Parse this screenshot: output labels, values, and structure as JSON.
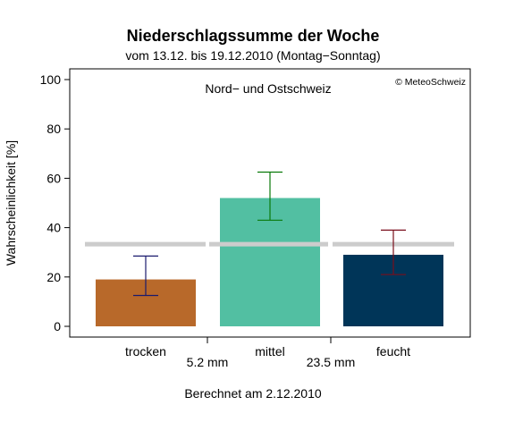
{
  "title": "Niederschlagssumme der Woche",
  "subtitle": "vom 13.12. bis 19.12.2010 (Montag−Sonntag)",
  "footer": "Berechnet am 2.12.2010",
  "region": "Nord− und Ostschweiz",
  "copyright": "© MeteoSchweiz",
  "chart_data": {
    "type": "bar",
    "ylabel": "Wahrscheinlichkeit [%]",
    "ylim": [
      0,
      100
    ],
    "yticks": [
      0,
      20,
      40,
      60,
      80,
      100
    ],
    "grid": false,
    "categories": [
      "trocken",
      "mittel",
      "feucht"
    ],
    "values": [
      19,
      52,
      29
    ],
    "error_low": [
      12.5,
      43,
      21
    ],
    "error_high": [
      28.5,
      62.5,
      39
    ],
    "climatology": 33.3,
    "thresholds": [
      "5.2 mm",
      "23.5 mm"
    ],
    "colors": {
      "bars": [
        "#b8692a",
        "#52bfa2",
        "#003558"
      ],
      "errors": [
        "#1a1a6e",
        "#0a7a0a",
        "#7a0f1c"
      ],
      "climatology": "#cccccc"
    }
  }
}
